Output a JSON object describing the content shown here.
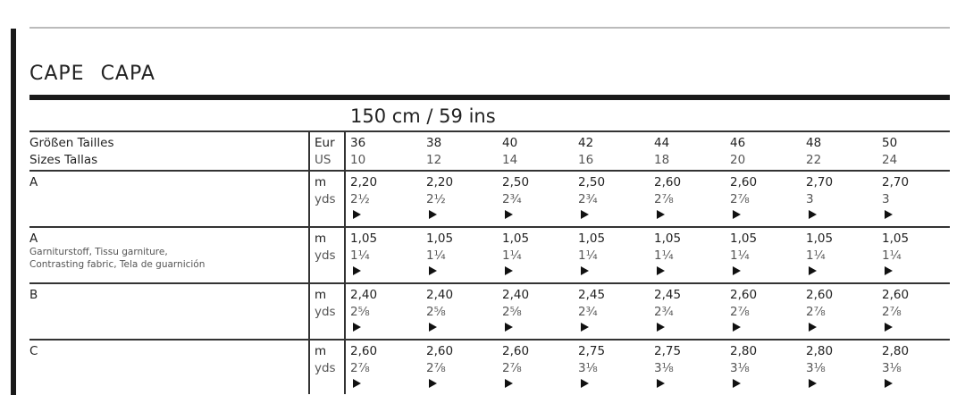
{
  "title": "CAPE   CAPA",
  "fabric_width": "150 cm / 59 ins",
  "header": {
    "label_line1": "Größen  Tailles",
    "label_line2": "Sizes  Tallas",
    "unit_line1": "Eur",
    "unit_line2": "US",
    "eur_sizes": [
      "36",
      "38",
      "40",
      "42",
      "44",
      "46",
      "48",
      "50"
    ],
    "us_sizes": [
      "10",
      "12",
      "14",
      "16",
      "18",
      "20",
      "22",
      "24"
    ]
  },
  "rows": [
    {
      "view": "A",
      "note1": "",
      "note2": "",
      "unit_m": "m",
      "unit_yds": "yds",
      "m": [
        "2,20",
        "2,20",
        "2,50",
        "2,50",
        "2,60",
        "2,60",
        "2,70",
        "2,70"
      ],
      "yds": [
        "2½",
        "2½",
        "2¾",
        "2¾",
        "2⅞",
        "2⅞",
        "3",
        "3"
      ]
    },
    {
      "view": "A",
      "note1": "Garniturstoff, Tissu garniture,",
      "note2": "Contrasting fabric, Tela de guarnición",
      "unit_m": "m",
      "unit_yds": "yds",
      "m": [
        "1,05",
        "1,05",
        "1,05",
        "1,05",
        "1,05",
        "1,05",
        "1,05",
        "1,05"
      ],
      "yds": [
        "1¼",
        "1¼",
        "1¼",
        "1¼",
        "1¼",
        "1¼",
        "1¼",
        "1¼"
      ]
    },
    {
      "view": "B",
      "note1": "",
      "note2": "",
      "unit_m": "m",
      "unit_yds": "yds",
      "m": [
        "2,40",
        "2,40",
        "2,40",
        "2,45",
        "2,45",
        "2,60",
        "2,60",
        "2,60"
      ],
      "yds": [
        "2⅝",
        "2⅝",
        "2⅝",
        "2¾",
        "2¾",
        "2⅞",
        "2⅞",
        "2⅞"
      ]
    },
    {
      "view": "C",
      "note1": "",
      "note2": "",
      "unit_m": "m",
      "unit_yds": "yds",
      "m": [
        "2,60",
        "2,60",
        "2,60",
        "2,75",
        "2,75",
        "2,80",
        "2,80",
        "2,80"
      ],
      "yds": [
        "2⅞",
        "2⅞",
        "2⅞",
        "3⅛",
        "3⅛",
        "3⅛",
        "3⅛",
        "3⅛"
      ]
    }
  ],
  "icons": {
    "layout_arrow": "triangle-right-icon"
  }
}
